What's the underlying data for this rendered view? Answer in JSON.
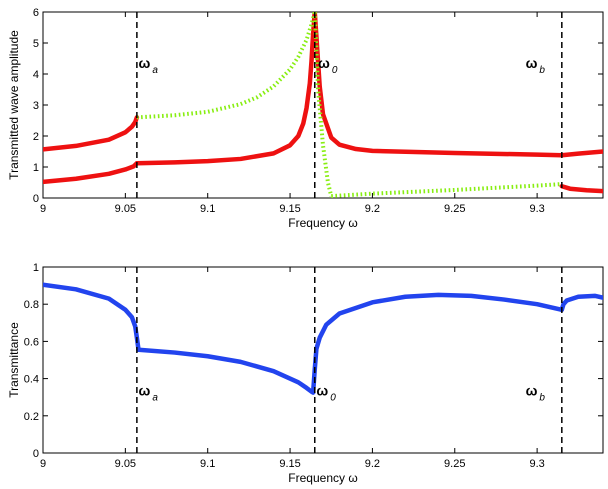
{
  "chart_data": [
    {
      "type": "line",
      "title": "",
      "xlabel": "Frequency  ω",
      "ylabel": "Transmitted wave amplitude",
      "xlim": [
        9.0,
        9.34
      ],
      "ylim": [
        0,
        6
      ],
      "xticks": [
        9,
        9.05,
        9.1,
        9.15,
        9.2,
        9.25,
        9.3
      ],
      "xtick_labels": [
        "9",
        "9.05",
        "9.1",
        "9.15",
        "9.2",
        "9.25",
        "9.3"
      ],
      "yticks": [
        0,
        1,
        2,
        3,
        4,
        5,
        6
      ],
      "ytick_labels": [
        "0",
        "1",
        "2",
        "3",
        "4",
        "5",
        "6"
      ],
      "vlines": [
        9.057,
        9.165,
        9.315
      ],
      "annotations": [
        {
          "text": "ω",
          "sub": "a",
          "x": 9.058,
          "y": 4.2
        },
        {
          "text": "ω",
          "sub": "0",
          "x": 9.167,
          "y": 4.2
        },
        {
          "text": "ω",
          "sub": "b",
          "x": 9.293,
          "y": 4.2
        }
      ],
      "series": [
        {
          "name": "upper-red",
          "color": "#ee1111",
          "style": "solid",
          "segments": [
            {
              "x": [
                9.0,
                9.02,
                9.04,
                9.05,
                9.054,
                9.056,
                9.057
              ],
              "y": [
                1.57,
                1.68,
                1.88,
                2.12,
                2.3,
                2.45,
                2.6
              ]
            },
            {
              "x": [
                9.057,
                9.08,
                9.1,
                9.12,
                9.14,
                9.15,
                9.155,
                9.158,
                9.16,
                9.162,
                9.163,
                9.164,
                9.165
              ],
              "y": [
                1.12,
                1.15,
                1.19,
                1.26,
                1.44,
                1.7,
                2.0,
                2.4,
                2.9,
                3.7,
                4.4,
                5.3,
                6.0
              ]
            },
            {
              "x": [
                9.165,
                9.166,
                9.168,
                9.17,
                9.175,
                9.18,
                9.19,
                9.2,
                9.25,
                9.3,
                9.315
              ],
              "y": [
                6.0,
                5.2,
                3.6,
                2.7,
                1.95,
                1.72,
                1.58,
                1.52,
                1.45,
                1.4,
                1.38
              ]
            },
            {
              "x": [
                9.315,
                9.325,
                9.34
              ],
              "y": [
                1.38,
                1.43,
                1.5
              ]
            }
          ]
        },
        {
          "name": "lower-red",
          "color": "#ee1111",
          "style": "solid",
          "segments": [
            {
              "x": [
                9.0,
                9.02,
                9.04,
                9.05,
                9.055,
                9.057
              ],
              "y": [
                0.52,
                0.62,
                0.78,
                0.92,
                1.02,
                1.12
              ]
            },
            {
              "x": [
                9.315,
                9.32,
                9.33,
                9.34
              ],
              "y": [
                0.38,
                0.3,
                0.25,
                0.22
              ]
            }
          ]
        },
        {
          "name": "green-dotted",
          "color": "#88ee11",
          "style": "dotted",
          "segments": [
            {
              "x": [
                9.057,
                9.08,
                9.1,
                9.12,
                9.13,
                9.14,
                9.15,
                9.155,
                9.16,
                9.163,
                9.165
              ],
              "y": [
                2.6,
                2.67,
                2.78,
                3.03,
                3.25,
                3.6,
                4.15,
                4.55,
                5.1,
                5.6,
                6.0
              ]
            },
            {
              "x": [
                9.165,
                9.167,
                9.17,
                9.173,
                9.175
              ],
              "y": [
                6.0,
                3.5,
                1.7,
                0.5,
                0.06
              ]
            },
            {
              "x": [
                9.175,
                9.2,
                9.25,
                9.3,
                9.315
              ],
              "y": [
                0.06,
                0.14,
                0.26,
                0.4,
                0.45
              ]
            }
          ]
        }
      ]
    },
    {
      "type": "line",
      "title": "",
      "xlabel": "Frequency  ω",
      "ylabel": "Transmittance",
      "xlim": [
        9.0,
        9.34
      ],
      "ylim": [
        0,
        1
      ],
      "xticks": [
        9,
        9.05,
        9.1,
        9.15,
        9.2,
        9.25,
        9.3
      ],
      "xtick_labels": [
        "9",
        "9.05",
        "9.1",
        "9.15",
        "9.2",
        "9.25",
        "9.3"
      ],
      "yticks": [
        0,
        0.2,
        0.4,
        0.6,
        0.8,
        1
      ],
      "ytick_labels": [
        "0",
        "0.2",
        "0.4",
        "0.6",
        "0.8",
        "1"
      ],
      "vlines": [
        9.057,
        9.165,
        9.315
      ],
      "annotations": [
        {
          "text": "ω",
          "sub": "a",
          "x": 9.058,
          "y": 0.31
        },
        {
          "text": "ω",
          "sub": "0",
          "x": 9.166,
          "y": 0.31
        },
        {
          "text": "ω",
          "sub": "b",
          "x": 9.293,
          "y": 0.31
        }
      ],
      "series": [
        {
          "name": "transmittance",
          "color": "#2244ee",
          "style": "solid",
          "segments": [
            {
              "x": [
                9.0,
                9.02,
                9.04,
                9.05,
                9.054,
                9.056,
                9.057,
                9.058
              ],
              "y": [
                0.905,
                0.88,
                0.83,
                0.77,
                0.73,
                0.68,
                0.62,
                0.555
              ]
            },
            {
              "x": [
                9.058,
                9.08,
                9.1,
                9.12,
                9.14,
                9.155,
                9.16,
                9.163,
                9.164
              ],
              "y": [
                0.555,
                0.54,
                0.52,
                0.49,
                0.44,
                0.38,
                0.35,
                0.33,
                0.325
              ]
            },
            {
              "x": [
                9.164,
                9.165,
                9.166,
                9.168,
                9.172,
                9.18,
                9.2,
                9.22,
                9.24,
                9.26,
                9.28,
                9.3,
                9.315
              ],
              "y": [
                0.325,
                0.45,
                0.56,
                0.62,
                0.69,
                0.75,
                0.81,
                0.84,
                0.85,
                0.845,
                0.825,
                0.8,
                0.77
              ]
            },
            {
              "x": [
                9.315,
                9.316,
                9.318,
                9.325,
                9.335,
                9.34
              ],
              "y": [
                0.77,
                0.8,
                0.82,
                0.84,
                0.845,
                0.835
              ]
            }
          ]
        }
      ]
    }
  ]
}
